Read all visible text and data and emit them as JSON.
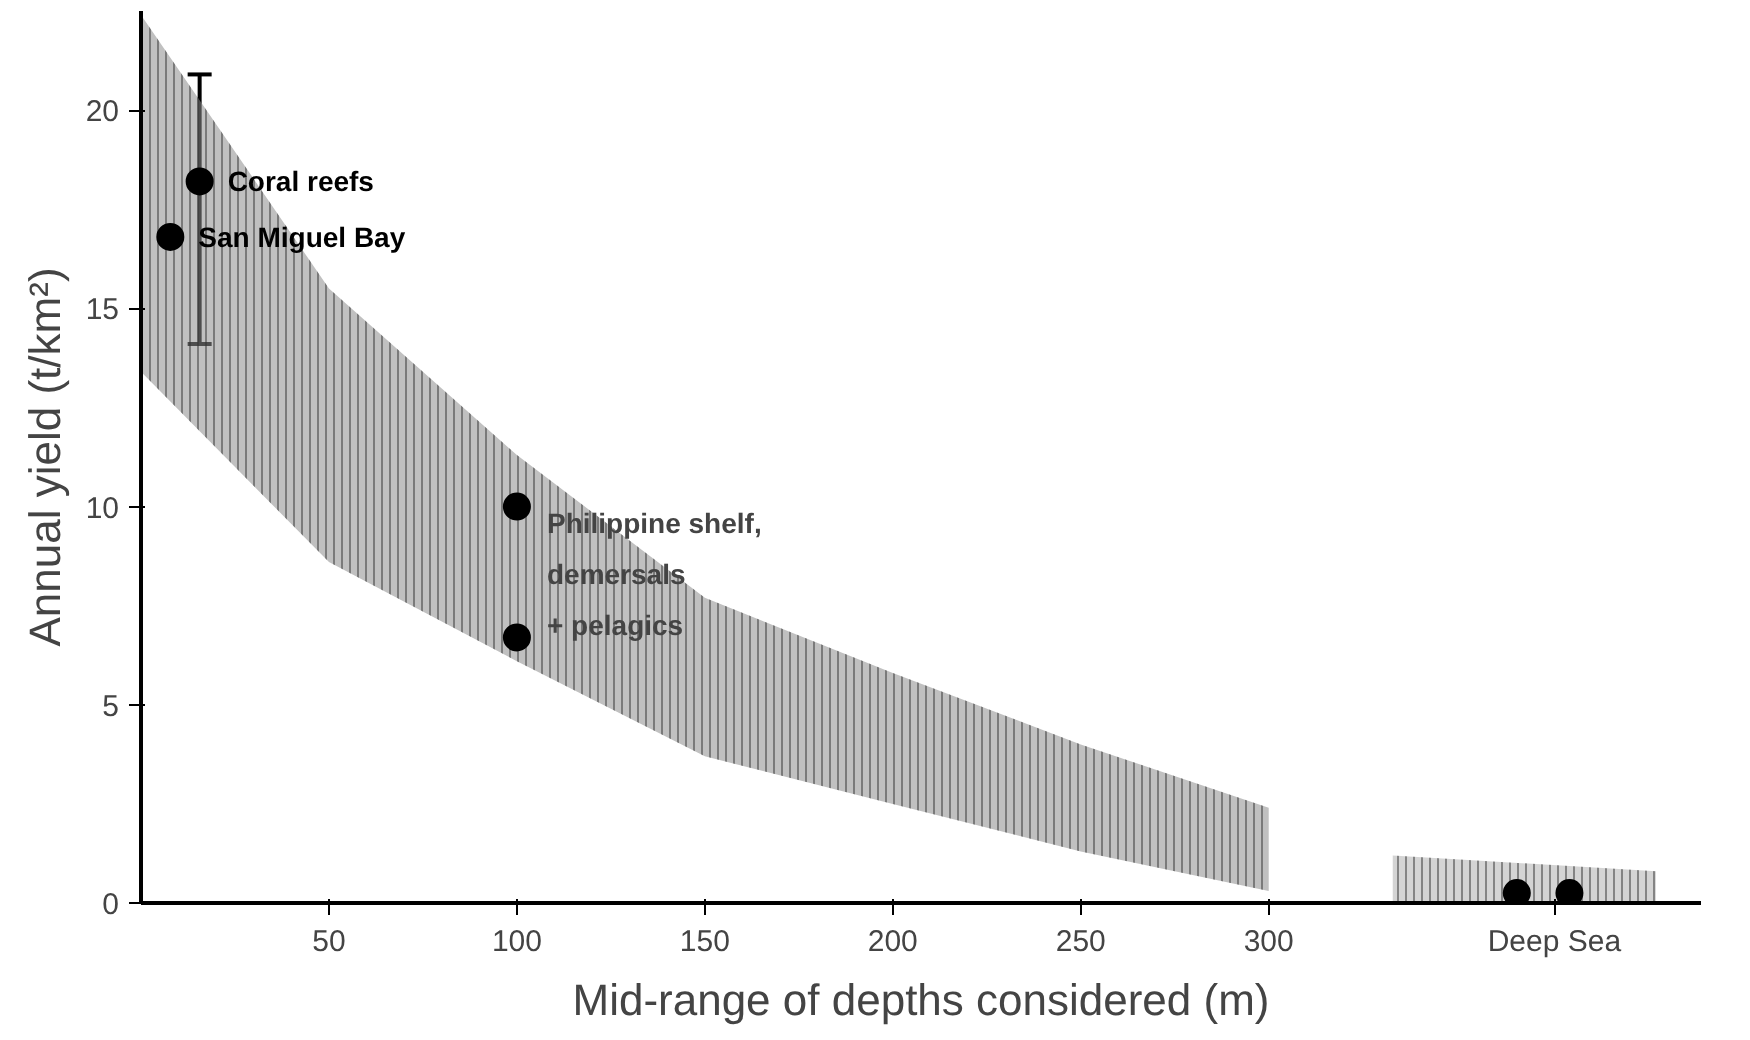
{
  "chart_data": {
    "type": "scatter",
    "xlabel": "Mid-range of depths considered (m)",
    "ylabel": "Annual yield (t/km²)",
    "xlim": [
      0,
      415
    ],
    "ylim": [
      0,
      22.5
    ],
    "xticks": [
      50,
      100,
      150,
      200,
      250,
      300,
      {
        "value": 376,
        "label": "Deep Sea"
      }
    ],
    "yticks": [
      0,
      5,
      10,
      15,
      20
    ],
    "grid": false,
    "marker": "circle",
    "series": [
      {
        "type": "area",
        "color": "#8c8c8c",
        "x": [
          0,
          50,
          100,
          150,
          200,
          250,
          300
        ],
        "values": [
          null,
          null,
          null,
          null,
          null,
          null,
          null
        ],
        "lower": [
          13.4,
          8.6,
          6.1,
          3.7,
          2.5,
          1.3,
          0.3
        ],
        "upper": [
          22.4,
          15.5,
          11.3,
          7.7,
          5.8,
          4.0,
          2.4
        ]
      },
      {
        "type": "area",
        "color": "#b0b0b0",
        "x": [
          333,
          403
        ],
        "values": [
          null,
          null
        ],
        "lower": [
          0,
          0
        ],
        "upper": [
          1.2,
          0.8
        ]
      },
      {
        "color": "#000000",
        "x": [
          7.8,
          15.6,
          100,
          100,
          366,
          380
        ],
        "values": [
          16.8,
          18.2,
          10.0,
          6.7,
          0.25,
          0.25
        ],
        "errors": [
          null,
          [
            14.1,
            20.9
          ],
          null,
          null,
          null,
          null
        ]
      }
    ],
    "annotations": [
      {
        "text": "San Miguel Bay",
        "x": 7.8,
        "y": 16.8
      },
      {
        "text": "Coral reefs",
        "x": 15.6,
        "y": 18.2
      },
      "Philippine shelf,\ndemersals\n+ pelagics"
    ]
  }
}
